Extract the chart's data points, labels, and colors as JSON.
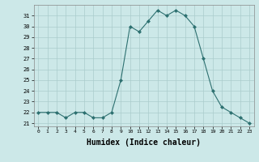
{
  "x": [
    0,
    1,
    2,
    3,
    4,
    5,
    6,
    7,
    8,
    9,
    10,
    11,
    12,
    13,
    14,
    15,
    16,
    17,
    18,
    19,
    20,
    21,
    22,
    23
  ],
  "y": [
    22.0,
    22.0,
    22.0,
    21.5,
    22.0,
    22.0,
    21.5,
    21.5,
    22.0,
    25.0,
    30.0,
    29.5,
    30.5,
    31.5,
    31.0,
    31.5,
    31.0,
    30.0,
    27.0,
    24.0,
    22.5,
    22.0,
    21.5,
    21.0
  ],
  "line_color": "#2d7070",
  "marker": "D",
  "marker_size": 2.0,
  "bg_color": "#cce8e8",
  "grid_color": "#aacccc",
  "xlabel": "Humidex (Indice chaleur)",
  "xlabel_fontsize": 7.0,
  "xlabel_fontweight": "bold",
  "yticks": [
    21,
    22,
    23,
    24,
    25,
    26,
    27,
    28,
    29,
    30,
    31
  ],
  "xticks": [
    0,
    1,
    2,
    3,
    4,
    5,
    6,
    7,
    8,
    9,
    10,
    11,
    12,
    13,
    14,
    15,
    16,
    17,
    18,
    19,
    20,
    21,
    22,
    23
  ],
  "ylim": [
    20.7,
    32.0
  ],
  "xlim": [
    -0.5,
    23.5
  ]
}
